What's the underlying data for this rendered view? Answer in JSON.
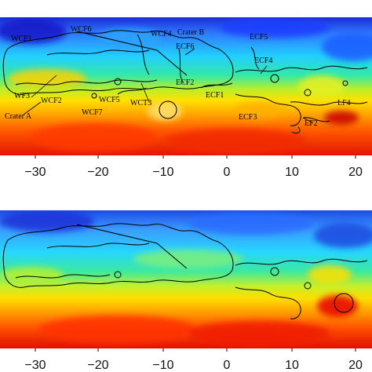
{
  "figure": {
    "panels": [
      {
        "id": "top",
        "x_ticks": [
          "−30",
          "−20",
          "−10",
          "0",
          "10",
          "20"
        ],
        "features": [
          {
            "id": "wcf1",
            "label": "WCF1"
          },
          {
            "id": "wcf6",
            "label": "WCF6"
          },
          {
            "id": "wcf4",
            "label": "WCF4"
          },
          {
            "id": "crater-b",
            "label": "Crater B"
          },
          {
            "id": "ecf5",
            "label": "ECF5"
          },
          {
            "id": "ecf6",
            "label": "ECF6"
          },
          {
            "id": "ecf4",
            "label": "ECF4"
          },
          {
            "id": "ecf2",
            "label": "ECF2"
          },
          {
            "id": "ecf1",
            "label": "ECF1"
          },
          {
            "id": "wf3",
            "label": "WF3"
          },
          {
            "id": "wcf2",
            "label": "WCF2"
          },
          {
            "id": "wcf5",
            "label": "WCF5"
          },
          {
            "id": "wct3",
            "label": "WCT3"
          },
          {
            "id": "crater-a",
            "label": "Crater A"
          },
          {
            "id": "wcf7",
            "label": "WCF7"
          },
          {
            "id": "ecf3",
            "label": "ECF3"
          },
          {
            "id": "ef2",
            "label": "EF2"
          },
          {
            "id": "lf4",
            "label": "LF4"
          }
        ]
      },
      {
        "id": "bottom",
        "x_ticks": [
          "−30",
          "−20",
          "−10",
          "0",
          "10",
          "20"
        ],
        "features": []
      }
    ],
    "colormap": [
      "#0000b0",
      "#0066ff",
      "#00c8ff",
      "#30e0a0",
      "#b8f030",
      "#ffe000",
      "#ff9a00",
      "#ff4400",
      "#d80000"
    ]
  }
}
